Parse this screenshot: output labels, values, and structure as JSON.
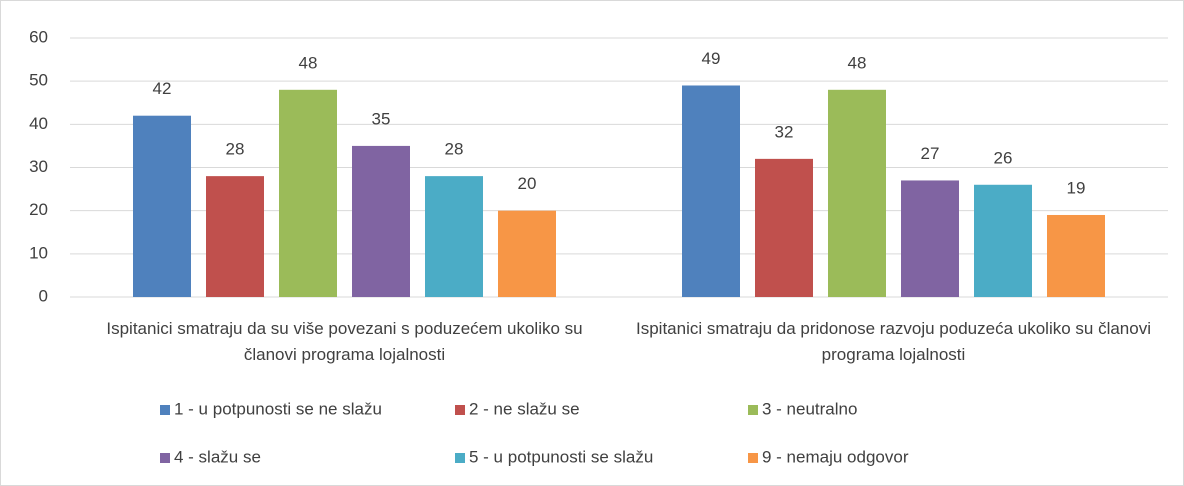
{
  "chart_data": {
    "type": "bar",
    "categories": [
      "Ispitanici smatraju da su više povezani s poduzećem ukoliko su članovi programa lojalnosti",
      "Ispitanici smatraju da pridonose razvoju poduzeća ukoliko su članovi programa lojalnosti"
    ],
    "series": [
      {
        "name": "1 - u potpunosti se ne slažu",
        "color": "#4f81bd",
        "values": [
          42,
          49
        ]
      },
      {
        "name": "2 - ne slažu se",
        "color": "#c0504d",
        "values": [
          28,
          32
        ]
      },
      {
        "name": "3 - neutralno",
        "color": "#9bbb59",
        "values": [
          48,
          48
        ]
      },
      {
        "name": "4 - slažu se",
        "color": "#8064a2",
        "values": [
          35,
          27
        ]
      },
      {
        "name": "5 - u potpunosti se slažu",
        "color": "#4bacc6",
        "values": [
          28,
          26
        ]
      },
      {
        "name": "9 - nemaju odgovor",
        "color": "#f79646",
        "values": [
          20,
          19
        ]
      }
    ],
    "ylim": [
      0,
      60
    ],
    "yticks": [
      0,
      10,
      20,
      30,
      40,
      50,
      60
    ],
    "grid": true,
    "legend": "bottom"
  }
}
